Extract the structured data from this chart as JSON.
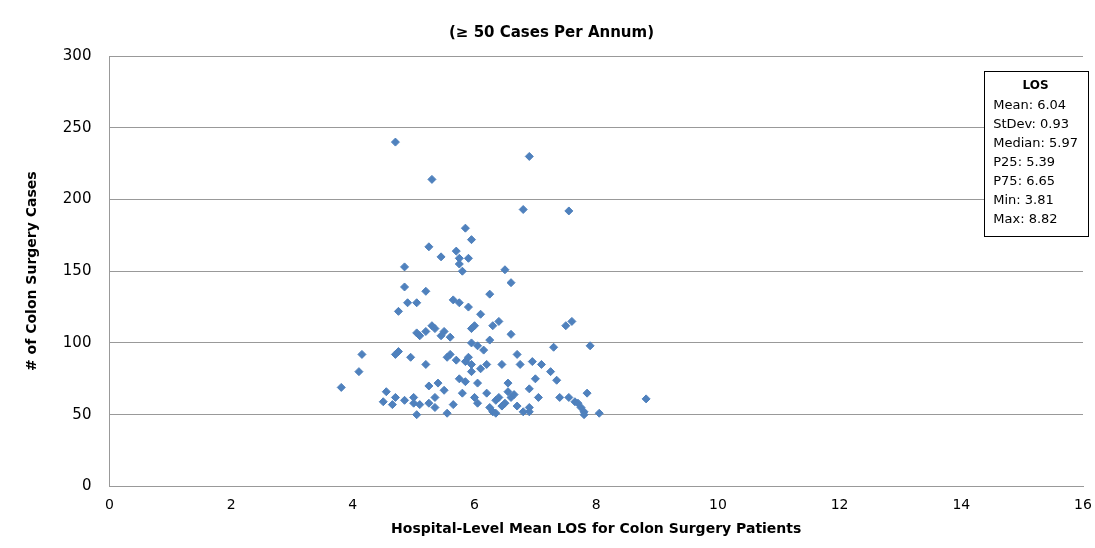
{
  "chart_data": {
    "type": "scatter",
    "title": "(≥ 50 Cases Per Annum)",
    "xlabel": "Hospital-Level Mean LOS for Colon Surgery Patients",
    "ylabel": "# of Colon Surgery Cases",
    "xlim": [
      0,
      16
    ],
    "xticks": [
      0,
      2,
      4,
      6,
      8,
      10,
      12,
      14,
      16
    ],
    "ylim": [
      0,
      300
    ],
    "yticks": [
      0,
      50,
      100,
      150,
      200,
      250,
      300
    ],
    "grid": "y",
    "marker": "diamond",
    "legend": false,
    "annotations": [
      "LOS",
      "Mean: 6.04",
      "StDev: 0.93",
      "Median: 5.97",
      "P25: 5.39",
      "P75: 6.65",
      "Min: 3.81",
      "Max: 8.82"
    ],
    "series": [
      {
        "color": "#4f81bd",
        "x": [
          4.7,
          5.3,
          6.9,
          6.8,
          7.55,
          5.85,
          5.95,
          5.25,
          5.7,
          5.75,
          5.9,
          5.45,
          5.75,
          5.8,
          6.5,
          6.6,
          4.85,
          5.2,
          5.65,
          5.75,
          4.85,
          5.9,
          6.25,
          4.75,
          4.9,
          5.05,
          5.3,
          5.35,
          5.2,
          5.05,
          5.1,
          5.5,
          5.6,
          6.0,
          5.95,
          6.1,
          6.3,
          6.4,
          6.6,
          7.5,
          7.6,
          4.7,
          4.75,
          4.1,
          3.81,
          4.15,
          4.5,
          4.55,
          4.65,
          4.7,
          4.85,
          5.0,
          5.0,
          5.05,
          5.1,
          5.25,
          5.25,
          5.35,
          5.35,
          5.4,
          5.5,
          5.45,
          5.55,
          5.6,
          5.7,
          5.65,
          5.75,
          5.8,
          5.85,
          5.9,
          5.95,
          5.95,
          6.0,
          6.05,
          6.05,
          6.1,
          6.15,
          6.2,
          6.2,
          6.25,
          6.3,
          6.35,
          6.35,
          6.4,
          6.45,
          6.5,
          6.55,
          6.6,
          6.65,
          6.7,
          6.7,
          6.75,
          6.8,
          6.9,
          6.9,
          6.95,
          7.0,
          7.05,
          7.1,
          7.25,
          7.3,
          7.35,
          7.4,
          7.55,
          7.65,
          7.7,
          7.8,
          7.75,
          7.85,
          7.9,
          8.05,
          8.82,
          5.95,
          6.05,
          6.25,
          6.45,
          5.85,
          5.55,
          5.2,
          4.95,
          6.55,
          6.9,
          7.8
        ],
        "values": [
          240,
          214,
          230,
          193,
          192,
          180,
          172,
          167,
          164,
          159,
          159,
          160,
          155,
          150,
          151,
          142,
          153,
          136,
          130,
          128,
          139,
          125,
          134,
          122,
          128,
          128,
          112,
          110,
          108,
          107,
          105,
          108,
          104,
          112,
          110,
          120,
          112,
          115,
          106,
          112,
          115,
          92,
          94,
          80,
          69,
          92,
          59,
          66,
          57,
          62,
          60,
          62,
          58,
          50,
          57,
          58,
          70,
          55,
          62,
          72,
          67,
          105,
          51,
          92,
          88,
          57,
          75,
          65,
          87,
          90,
          85,
          80,
          62,
          58,
          72,
          82,
          95,
          85,
          65,
          55,
          52,
          51,
          60,
          62,
          56,
          58,
          66,
          62,
          64,
          56,
          92,
          85,
          52,
          55,
          68,
          87,
          75,
          62,
          85,
          80,
          97,
          74,
          62,
          62,
          59,
          58,
          52,
          55,
          65,
          98,
          51,
          61,
          100,
          98,
          102,
          85,
          73,
          90,
          85,
          90,
          72,
          52,
          50
        ]
      }
    ]
  }
}
